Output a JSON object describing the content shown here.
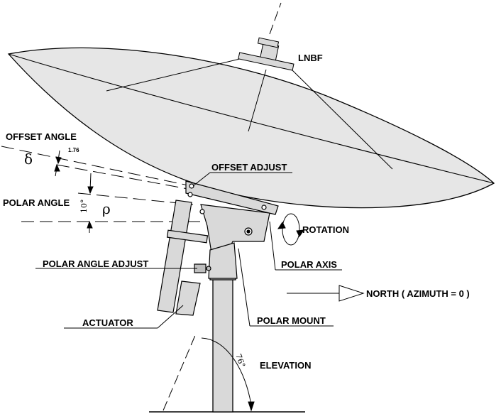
{
  "labels": {
    "lnbf": "LNBF",
    "offset_angle": "OFFSET ANGLE",
    "offset_value": "1.76",
    "delta": "δ",
    "offset_adjust": "OFFSET ADJUST",
    "polar_angle": "POLAR ANGLE",
    "polar_value": "10°",
    "rho": "ρ",
    "rotation": "ROTATION",
    "polar_angle_adjust": "POLAR ANGLE ADJUST",
    "polar_axis": "POLAR AXIS",
    "north": "NORTH ( AZIMUTH = 0 )",
    "actuator": "ACTUATOR",
    "polar_mount": "POLAR MOUNT",
    "elevation_value": "76°",
    "elevation": "ELEVATION"
  },
  "colors": {
    "dish_fill": "#e6e6e6",
    "metal_fill": "#d9d9d9",
    "line": "#000000"
  }
}
